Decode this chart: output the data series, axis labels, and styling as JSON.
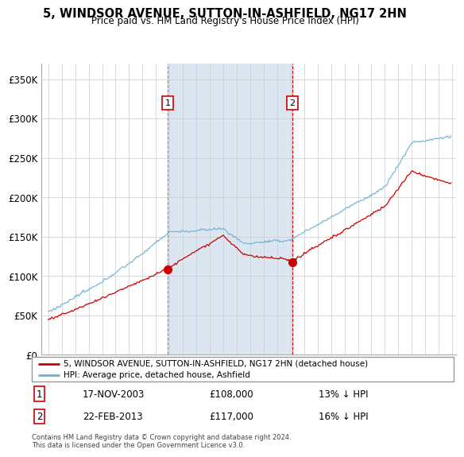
{
  "title": "5, WINDSOR AVENUE, SUTTON-IN-ASHFIELD, NG17 2HN",
  "subtitle": "Price paid vs. HM Land Registry's House Price Index (HPI)",
  "legend_line1": "5, WINDSOR AVENUE, SUTTON-IN-ASHFIELD, NG17 2HN (detached house)",
  "legend_line2": "HPI: Average price, detached house, Ashfield",
  "transaction1_date": "17-NOV-2003",
  "transaction1_price": 108000,
  "transaction1_label": "13% ↓ HPI",
  "transaction2_date": "22-FEB-2013",
  "transaction2_price": 117000,
  "transaction2_label": "16% ↓ HPI",
  "footnote": "Contains HM Land Registry data © Crown copyright and database right 2024.\nThis data is licensed under the Open Government Licence v3.0.",
  "hpi_color": "#6baed6",
  "price_color": "#cc0000",
  "transaction_marker_color": "#cc0000",
  "vline1_color": "#888888",
  "vline2_color": "#cc0000",
  "shaded_color": "#dce6f1",
  "background_color": "#ffffff",
  "grid_color": "#cccccc",
  "ylim": [
    0,
    370000
  ],
  "yticks": [
    0,
    50000,
    100000,
    150000,
    200000,
    250000,
    300000,
    350000
  ],
  "xlim_start": 1994.5,
  "xlim_end": 2025.3,
  "transaction1_year": 2003.88,
  "transaction2_year": 2013.13
}
